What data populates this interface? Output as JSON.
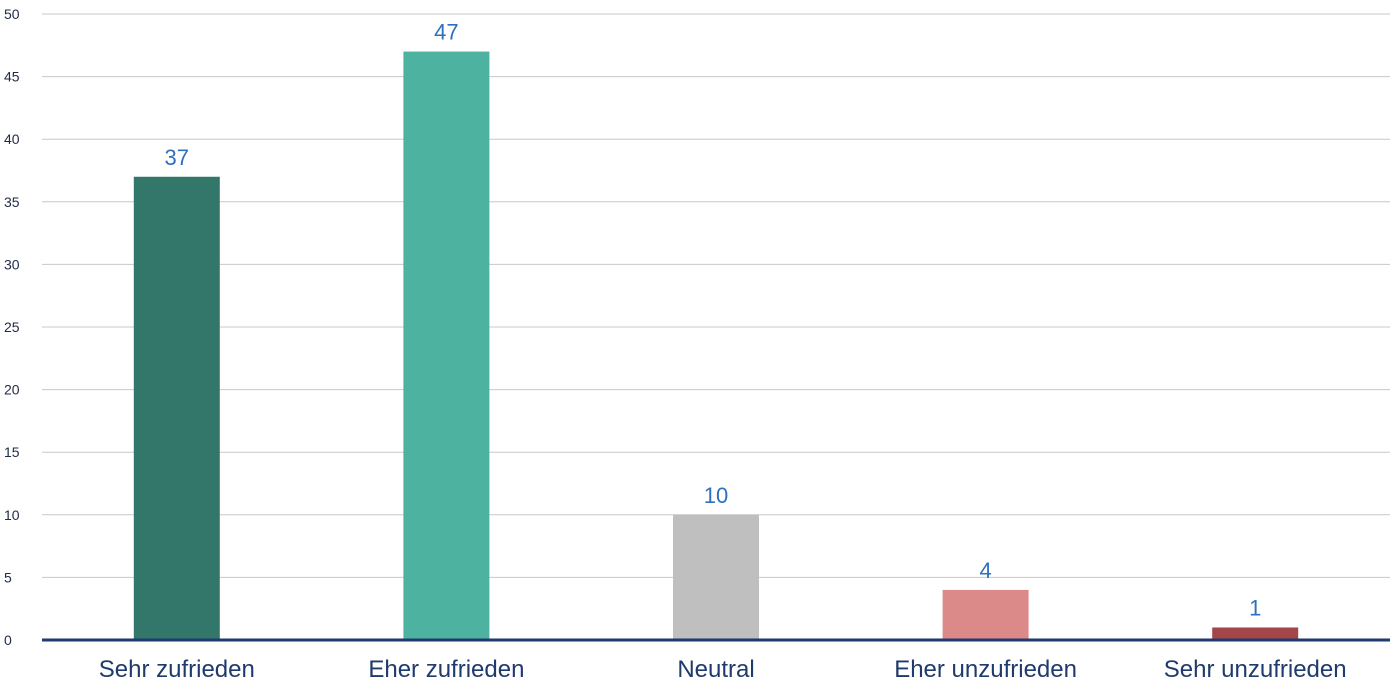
{
  "chart_data": {
    "type": "bar",
    "categories": [
      "Sehr zufrieden",
      "Eher zufrieden",
      "Neutral",
      "Eher unzufrieden",
      "Sehr unzufrieden"
    ],
    "values": [
      37,
      47,
      10,
      4,
      1
    ],
    "data_labels": [
      "37",
      "47",
      "10",
      "4",
      "1"
    ],
    "colors": [
      "#33766a",
      "#4db3a0",
      "#bfbfbf",
      "#dc8a89",
      "#a34649"
    ],
    "ylim": [
      0,
      50
    ],
    "yticks": [
      0,
      5,
      10,
      15,
      20,
      25,
      30,
      35,
      40,
      45,
      50
    ],
    "title": "",
    "xlabel": "",
    "ylabel": "",
    "grid": true,
    "legend": "none"
  },
  "style": {
    "gridline_color": "#c8c8c8",
    "axis_line_color": "#1f3a6d",
    "data_label_color": "#2f6fbe",
    "tick_label_color": "#1f3a6d"
  }
}
